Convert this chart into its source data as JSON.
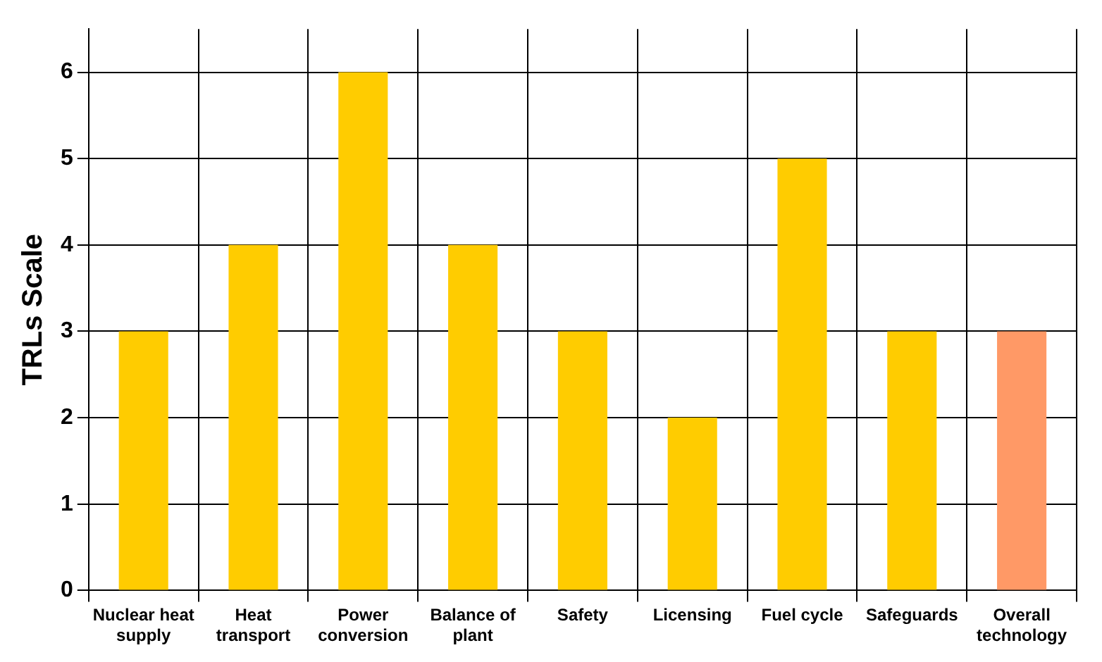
{
  "chart_data": {
    "type": "bar",
    "ylabel": "TRLs Scale",
    "categories": [
      "Nuclear heat supply",
      "Heat transport",
      "Power conversion",
      "Balance of plant",
      "Safety",
      "Licensing",
      "Fuel cycle",
      "Safeguards",
      "Overall technology"
    ],
    "values": [
      3,
      4,
      6,
      4,
      3,
      2,
      5,
      3,
      3
    ],
    "colors": [
      "#ffcc00",
      "#ffcc00",
      "#ffcc00",
      "#ffcc00",
      "#ffcc00",
      "#ffcc00",
      "#ffcc00",
      "#ffcc00",
      "#ff9966"
    ],
    "ylim": [
      0,
      6.5
    ],
    "yticks": [
      0,
      1,
      2,
      3,
      4,
      5,
      6
    ],
    "grid": true,
    "legend": false
  }
}
